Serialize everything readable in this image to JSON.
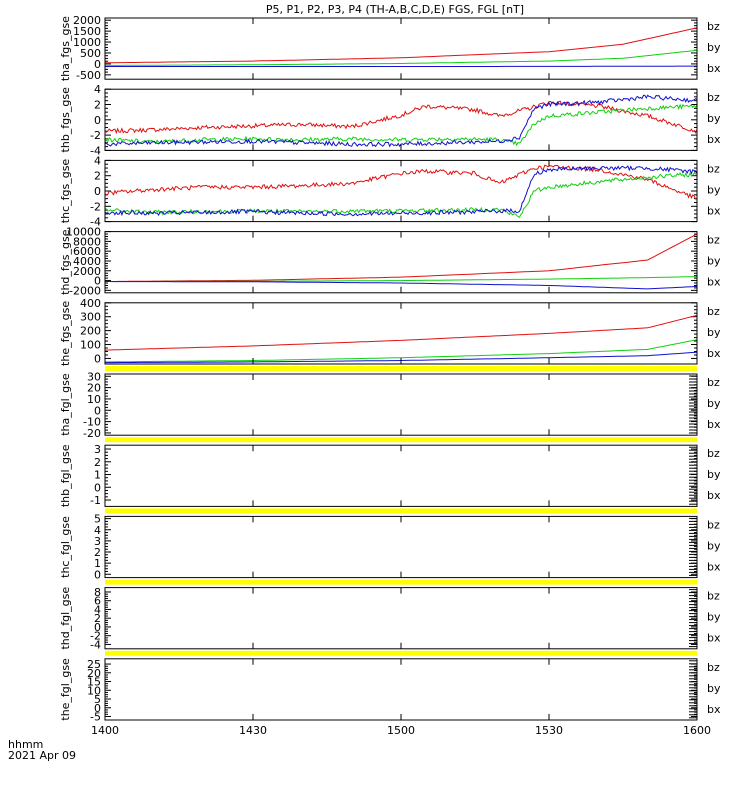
{
  "title": "P5, P1, P2, P3, P4 (TH-A,B,C,D,E) FGS, FGL [nT]",
  "footer": {
    "time_label": "hhmm",
    "date_label": "2021 Apr 09"
  },
  "x_ticks": [
    "1400",
    "1430",
    "1500",
    "1530",
    "1600"
  ],
  "colors": {
    "bz": "#e01010",
    "by": "#10d010",
    "bx": "#1010d0",
    "flag": "#ffff00"
  },
  "chart_data": [
    {
      "type": "line",
      "ylabel": "tha_fgs_gse",
      "ylim": [
        -700,
        2100
      ],
      "y_ticks": [
        -500,
        0,
        500,
        1000,
        1500,
        2000
      ],
      "legend": [
        "bz",
        "by",
        "bx"
      ],
      "series": [
        {
          "name": "bz",
          "x": [
            1400,
            1430,
            1500,
            1530,
            1545,
            1600
          ],
          "values": [
            50,
            130,
            280,
            560,
            900,
            1650
          ]
        },
        {
          "name": "by",
          "x": [
            1400,
            1430,
            1500,
            1530,
            1545,
            1600
          ],
          "values": [
            -70,
            -40,
            20,
            130,
            260,
            620
          ]
        },
        {
          "name": "bx",
          "x": [
            1400,
            1430,
            1500,
            1530,
            1545,
            1600
          ],
          "values": [
            -120,
            -120,
            -120,
            -115,
            -110,
            -100
          ]
        }
      ]
    },
    {
      "type": "line",
      "ylabel": "thb_fgs_gse",
      "ylim": [
        -4,
        4
      ],
      "y_ticks": [
        -4,
        -2,
        0,
        2,
        4
      ],
      "legend": [
        "bz",
        "by",
        "bx"
      ],
      "series": [
        {
          "name": "bz",
          "x": [
            1400,
            1410,
            1420,
            1430,
            1440,
            1450,
            1500,
            1505,
            1515,
            1520,
            1526,
            1530,
            1540,
            1550,
            1600
          ],
          "values": [
            -1.5,
            -1.3,
            -1.0,
            -0.8,
            -0.6,
            -0.9,
            0.6,
            1.8,
            1.3,
            0.5,
            1.5,
            2.3,
            1.8,
            0.5,
            -1.5
          ]
        },
        {
          "name": "by",
          "x": [
            1400,
            1410,
            1420,
            1430,
            1440,
            1450,
            1500,
            1510,
            1520,
            1524,
            1527,
            1530,
            1540,
            1550,
            1600
          ],
          "values": [
            -2.6,
            -2.9,
            -2.6,
            -2.5,
            -2.6,
            -2.5,
            -2.6,
            -2.5,
            -2.6,
            -3.2,
            -0.5,
            0.5,
            1.0,
            1.5,
            1.8
          ]
        },
        {
          "name": "bx",
          "x": [
            1400,
            1410,
            1420,
            1430,
            1440,
            1450,
            1500,
            1510,
            1520,
            1524,
            1527,
            1530,
            1540,
            1550,
            1600
          ],
          "values": [
            -3.2,
            -3.0,
            -2.9,
            -2.8,
            -3.0,
            -3.2,
            -3.2,
            -3.0,
            -2.8,
            -2.3,
            1.5,
            2.0,
            2.3,
            3.0,
            2.5
          ]
        }
      ]
    },
    {
      "type": "line",
      "ylabel": "thc_fgs_gse",
      "ylim": [
        -4,
        4
      ],
      "y_ticks": [
        -4,
        -2,
        0,
        2,
        4
      ],
      "legend": [
        "bz",
        "by",
        "bx"
      ],
      "series": [
        {
          "name": "bz",
          "x": [
            1400,
            1410,
            1420,
            1430,
            1440,
            1450,
            1500,
            1505,
            1515,
            1520,
            1527,
            1530,
            1540,
            1550,
            1600
          ],
          "values": [
            -0.3,
            0.2,
            0.5,
            0.5,
            0.7,
            1.0,
            2.3,
            2.6,
            2.3,
            1.0,
            3.0,
            3.2,
            2.8,
            1.5,
            -1.0
          ]
        },
        {
          "name": "by",
          "x": [
            1400,
            1410,
            1420,
            1430,
            1440,
            1450,
            1500,
            1510,
            1520,
            1524,
            1527,
            1530,
            1540,
            1550,
            1600
          ],
          "values": [
            -2.5,
            -2.8,
            -2.7,
            -2.6,
            -2.7,
            -2.6,
            -2.6,
            -2.5,
            -2.4,
            -3.4,
            0.0,
            0.5,
            1.2,
            1.8,
            2.2
          ]
        },
        {
          "name": "bx",
          "x": [
            1400,
            1410,
            1420,
            1430,
            1440,
            1450,
            1500,
            1510,
            1520,
            1524,
            1527,
            1530,
            1540,
            1550,
            1600
          ],
          "values": [
            -2.8,
            -2.9,
            -2.8,
            -2.7,
            -2.9,
            -3.0,
            -2.9,
            -2.8,
            -2.6,
            -2.6,
            2.2,
            2.8,
            3.0,
            3.0,
            2.5
          ]
        }
      ]
    },
    {
      "type": "line",
      "ylabel": "thd_fgs_gse",
      "ylim": [
        -2500,
        10000
      ],
      "y_ticks": [
        -2000,
        0,
        2000,
        4000,
        6000,
        8000,
        10000
      ],
      "legend": [
        "bz",
        "by",
        "bx"
      ],
      "series": [
        {
          "name": "bz",
          "x": [
            1400,
            1430,
            1500,
            1530,
            1550,
            1600
          ],
          "values": [
            -200,
            50,
            700,
            2000,
            4200,
            9500
          ]
        },
        {
          "name": "by",
          "x": [
            1400,
            1430,
            1500,
            1530,
            1550,
            1600
          ],
          "values": [
            -200,
            -150,
            0,
            300,
            600,
            800
          ]
        },
        {
          "name": "bx",
          "x": [
            1400,
            1430,
            1500,
            1530,
            1550,
            1600
          ],
          "values": [
            -200,
            -250,
            -500,
            -1000,
            -1700,
            -1200
          ]
        }
      ]
    },
    {
      "type": "line",
      "ylabel": "the_fgs_gse",
      "ylim": [
        -40,
        400
      ],
      "y_ticks": [
        0,
        100,
        200,
        300,
        400
      ],
      "legend": [
        "bz",
        "by",
        "bx"
      ],
      "series": [
        {
          "name": "bz",
          "x": [
            1400,
            1430,
            1500,
            1530,
            1550,
            1600
          ],
          "values": [
            60,
            90,
            130,
            180,
            220,
            310
          ]
        },
        {
          "name": "by",
          "x": [
            1400,
            1430,
            1500,
            1530,
            1550,
            1600
          ],
          "values": [
            -25,
            -15,
            5,
            35,
            65,
            135
          ]
        },
        {
          "name": "bx",
          "x": [
            1400,
            1430,
            1500,
            1530,
            1550,
            1600
          ],
          "values": [
            -30,
            -25,
            -15,
            5,
            20,
            45
          ]
        }
      ]
    },
    {
      "type": "line",
      "ylabel": "tha_fgl_gse",
      "ylim": [
        -22,
        32
      ],
      "y_ticks": [
        -20,
        -10,
        0,
        10,
        20,
        30
      ],
      "legend": [
        "bz",
        "by",
        "bx"
      ],
      "series": []
    },
    {
      "type": "line",
      "ylabel": "thb_fgl_gse",
      "ylim": [
        -1.5,
        3.3
      ],
      "y_ticks": [
        -1,
        0,
        1,
        2,
        3
      ],
      "legend": [
        "bz",
        "by",
        "bx"
      ],
      "series": []
    },
    {
      "type": "line",
      "ylabel": "thc_fgl_gse",
      "ylim": [
        -0.3,
        5.2
      ],
      "y_ticks": [
        0,
        1,
        2,
        3,
        4,
        5
      ],
      "legend": [
        "bz",
        "by",
        "bx"
      ],
      "series": []
    },
    {
      "type": "line",
      "ylabel": "thd_fgl_gse",
      "ylim": [
        -5,
        9
      ],
      "y_ticks": [
        -4,
        -2,
        0,
        2,
        4,
        6,
        8
      ],
      "legend": [
        "bz",
        "by",
        "bx"
      ],
      "series": []
    },
    {
      "type": "line",
      "ylabel": "the_fgl_gse",
      "ylim": [
        -7,
        28
      ],
      "y_ticks": [
        -5,
        0,
        5,
        10,
        15,
        20,
        25
      ],
      "legend": [
        "bz",
        "by",
        "bx"
      ],
      "series": []
    }
  ]
}
